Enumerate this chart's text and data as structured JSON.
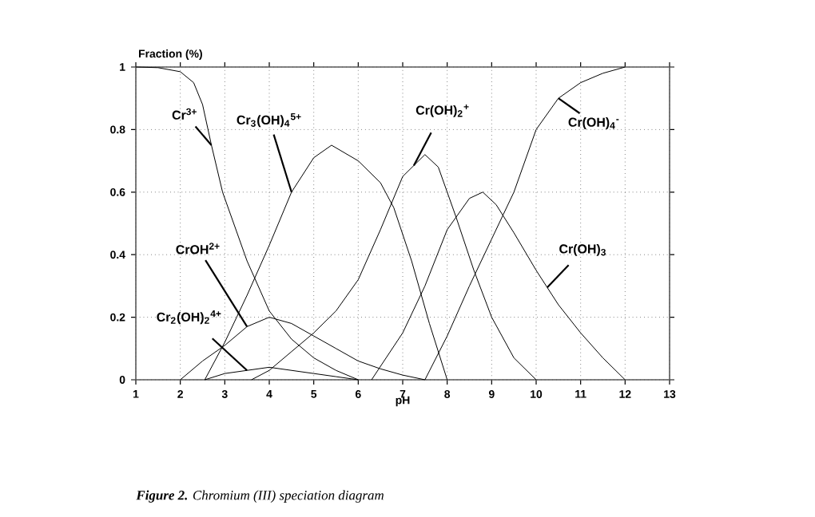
{
  "chart_data": {
    "type": "line",
    "xlabel": "pH",
    "ylabel": "Fraction (%)",
    "xlim": [
      1,
      13
    ],
    "xticks": [
      1,
      2,
      3,
      4,
      5,
      6,
      7,
      8,
      9,
      10,
      11,
      12,
      13
    ],
    "ylim": [
      0,
      1
    ],
    "yticks": [
      0,
      0.2,
      0.4,
      0.6,
      0.8,
      1
    ],
    "grid": true,
    "marker": "none",
    "line_style": "solid",
    "series": [
      {
        "color": "#000000",
        "x": [
          1,
          1.5,
          2,
          2.3,
          2.5,
          2.7,
          2.95,
          3.2,
          3.5,
          4,
          4.5,
          5,
          5.5,
          6
        ],
        "values": [
          1,
          0.998,
          0.985,
          0.95,
          0.88,
          0.75,
          0.6,
          0.5,
          0.38,
          0.22,
          0.13,
          0.07,
          0.03,
          0
        ]
      },
      {
        "color": "#000000",
        "x": [
          2.55,
          3,
          3.5,
          4,
          4.5,
          5,
          5.4,
          6,
          6.5,
          6.8,
          7.2,
          7.6,
          8
        ],
        "values": [
          0,
          0.12,
          0.27,
          0.43,
          0.6,
          0.71,
          0.75,
          0.7,
          0.63,
          0.55,
          0.38,
          0.18,
          0
        ]
      },
      {
        "color": "#000000",
        "x": [
          2,
          2.5,
          3,
          3.5,
          4,
          4.5,
          5,
          5.5,
          6,
          6.5,
          7,
          7.5
        ],
        "values": [
          0,
          0.06,
          0.11,
          0.17,
          0.2,
          0.18,
          0.14,
          0.1,
          0.06,
          0.035,
          0.015,
          0
        ]
      },
      {
        "color": "#000000",
        "x": [
          2.55,
          3,
          3.5,
          4,
          4.5,
          5,
          5.5,
          6
        ],
        "values": [
          0,
          0.02,
          0.03,
          0.04,
          0.03,
          0.02,
          0.01,
          0
        ]
      },
      {
        "color": "#000000",
        "x": [
          3.6,
          4,
          4.5,
          5,
          5.5,
          6,
          6.5,
          7,
          7.5,
          7.8,
          8.2,
          8.6,
          9,
          9.5,
          10
        ],
        "values": [
          0,
          0.03,
          0.09,
          0.15,
          0.22,
          0.32,
          0.48,
          0.65,
          0.72,
          0.68,
          0.52,
          0.35,
          0.2,
          0.07,
          0
        ]
      },
      {
        "color": "#000000",
        "x": [
          6.3,
          7,
          7.5,
          8,
          8.5,
          8.8,
          9.1,
          9.5,
          10,
          10.5,
          11,
          11.5,
          12
        ],
        "values": [
          0,
          0.15,
          0.3,
          0.48,
          0.58,
          0.6,
          0.56,
          0.47,
          0.35,
          0.24,
          0.15,
          0.07,
          0
        ]
      },
      {
        "color": "#000000",
        "x": [
          7.5,
          8,
          8.5,
          9,
          9.5,
          10,
          10.5,
          11,
          11.5,
          12
        ],
        "values": [
          0,
          0.14,
          0.3,
          0.45,
          0.6,
          0.8,
          0.9,
          0.95,
          0.98,
          1
        ]
      }
    ],
    "annotations": [
      {
        "text": "Cr$^{3+}$",
        "x": 2.7,
        "y": 0.75
      },
      {
        "text": "Cr$_{3}$(OH)$_{4}$$^{5+}$",
        "x": 4.5,
        "y": 0.6
      },
      {
        "text": "Cr(OH)$_{2}$$^{+}$",
        "x": 7.25,
        "y": 0.685
      },
      {
        "text": "Cr(OH)$_{4}$$^{-}$",
        "x": 10.5,
        "y": 0.9
      },
      {
        "text": "CrOH$^{2+}$",
        "x": 3.5,
        "y": 0.17
      },
      {
        "text": "Cr$_{2}$(OH)$_{2}$$^{4+}$",
        "x": 3.5,
        "y": 0.03
      },
      {
        "text": "Cr(OH)$_{3}$",
        "x": 10.25,
        "y": 0.295
      },
      "**Figure 2.** Chromium (III) speciation diagram"
    ]
  }
}
